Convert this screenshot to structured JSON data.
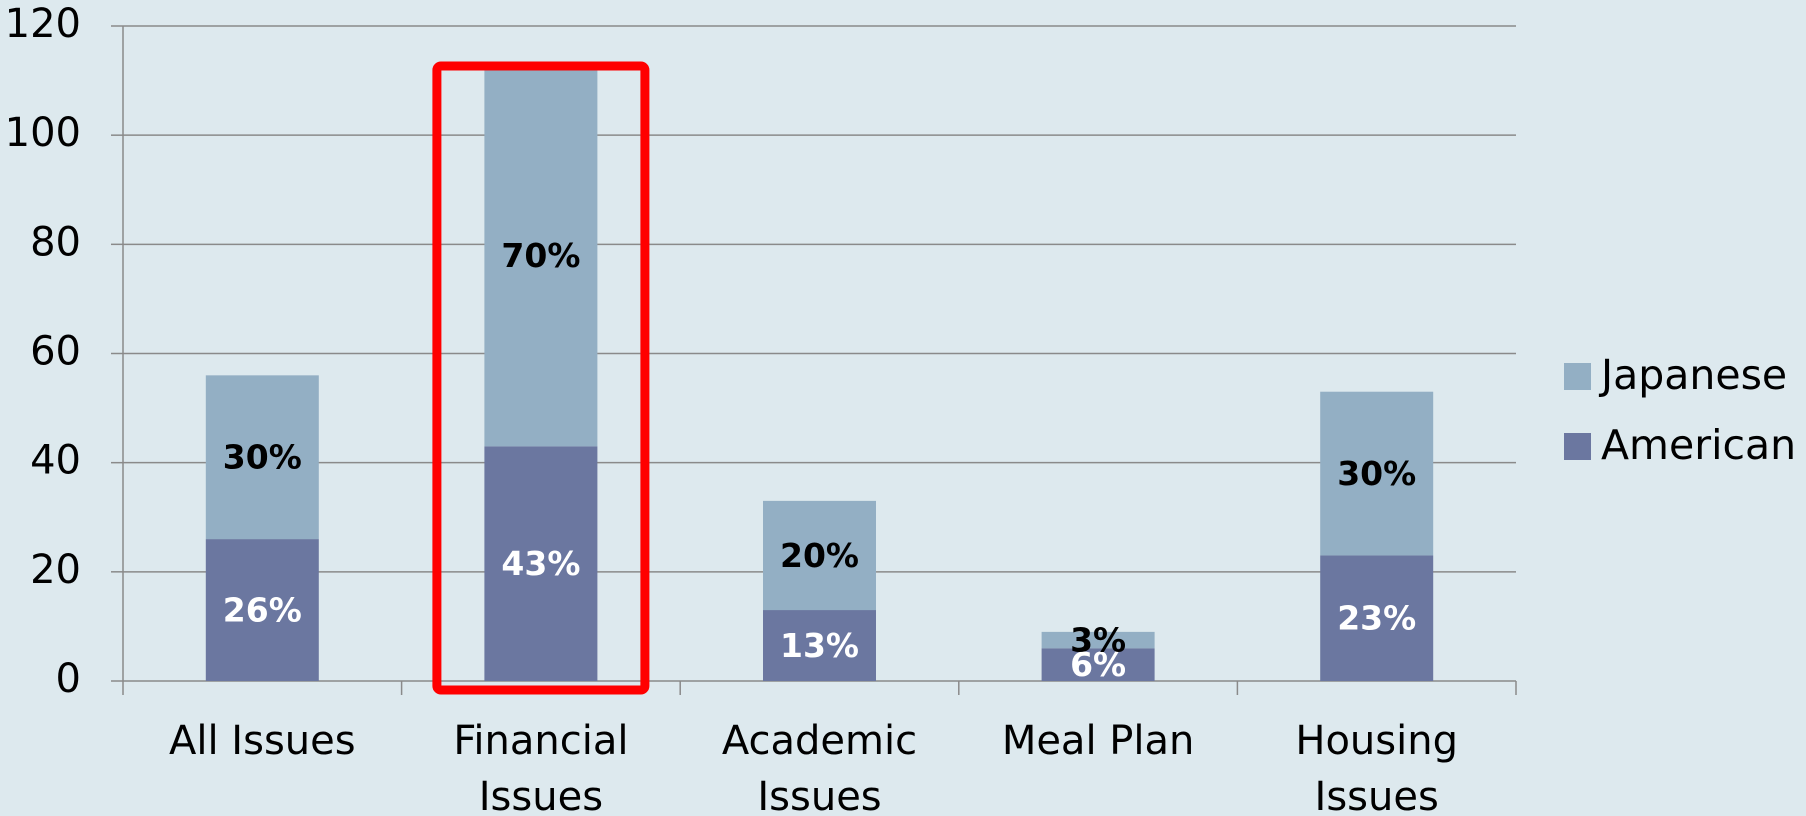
{
  "chart_data": {
    "type": "stacked_bar",
    "categories": [
      "All Issues",
      "Financial Issues",
      "Academic Issues",
      "Meal Plan",
      "Housing Issues"
    ],
    "series": [
      {
        "name": "American",
        "color": "#6b77a0",
        "values": [
          26,
          43,
          13,
          6,
          23
        ],
        "value_labels": [
          "26%",
          "43%",
          "13%",
          "6%",
          "23%"
        ]
      },
      {
        "name": "Japanese",
        "color": "#93afc4",
        "values": [
          30,
          70,
          20,
          3,
          30
        ],
        "value_labels": [
          "30%",
          "70%",
          "20%",
          "3%",
          "30%"
        ]
      }
    ],
    "ylim": [
      0,
      120
    ],
    "yticks": [
      0,
      20,
      40,
      60,
      80,
      100,
      120
    ],
    "grid": true,
    "legend": "right"
  }
}
